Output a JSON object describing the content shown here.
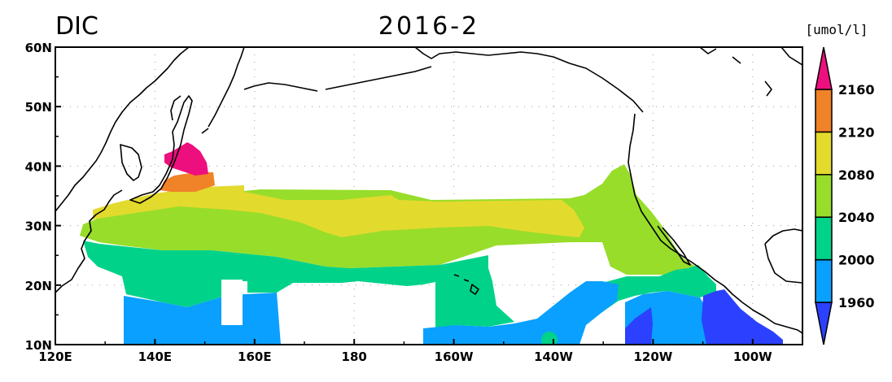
{
  "header": {
    "variable": "DIC",
    "period": "2016-2",
    "units": "[umol/l]"
  },
  "axes": {
    "x_ticks": [
      {
        "lon": 120,
        "label": "120E"
      },
      {
        "lon": 140,
        "label": "140E"
      },
      {
        "lon": 160,
        "label": "160E"
      },
      {
        "lon": 180,
        "label": "180"
      },
      {
        "lon": 200,
        "label": "160W"
      },
      {
        "lon": 220,
        "label": "140W"
      },
      {
        "lon": 240,
        "label": "120W"
      },
      {
        "lon": 260,
        "label": "100W"
      }
    ],
    "y_ticks": [
      {
        "lat": 10,
        "label": "10N"
      },
      {
        "lat": 20,
        "label": "20N"
      },
      {
        "lat": 30,
        "label": "30N"
      },
      {
        "lat": 40,
        "label": "40N"
      },
      {
        "lat": 50,
        "label": "50N"
      },
      {
        "lat": 60,
        "label": "60N"
      }
    ],
    "lon_range": [
      120,
      270
    ],
    "lat_range": [
      10,
      60
    ],
    "grid": "dotted"
  },
  "colorbar": {
    "labels": [
      "1960",
      "2000",
      "2040",
      "2080",
      "2120",
      "2160"
    ],
    "colors": [
      "#2b41ff",
      "#0aa0ff",
      "#00d28a",
      "#98dd2a",
      "#e3da2e",
      "#f08228",
      "#ee0f7e"
    ]
  },
  "chart_data": {
    "type": "heatmap",
    "title": "DIC 2016-2",
    "units": "[umol/l]",
    "levels": [
      1960,
      2000,
      2040,
      2080,
      2120,
      2160
    ],
    "region": {
      "lon": [
        120,
        270
      ],
      "lat": [
        10,
        60
      ]
    }
  }
}
